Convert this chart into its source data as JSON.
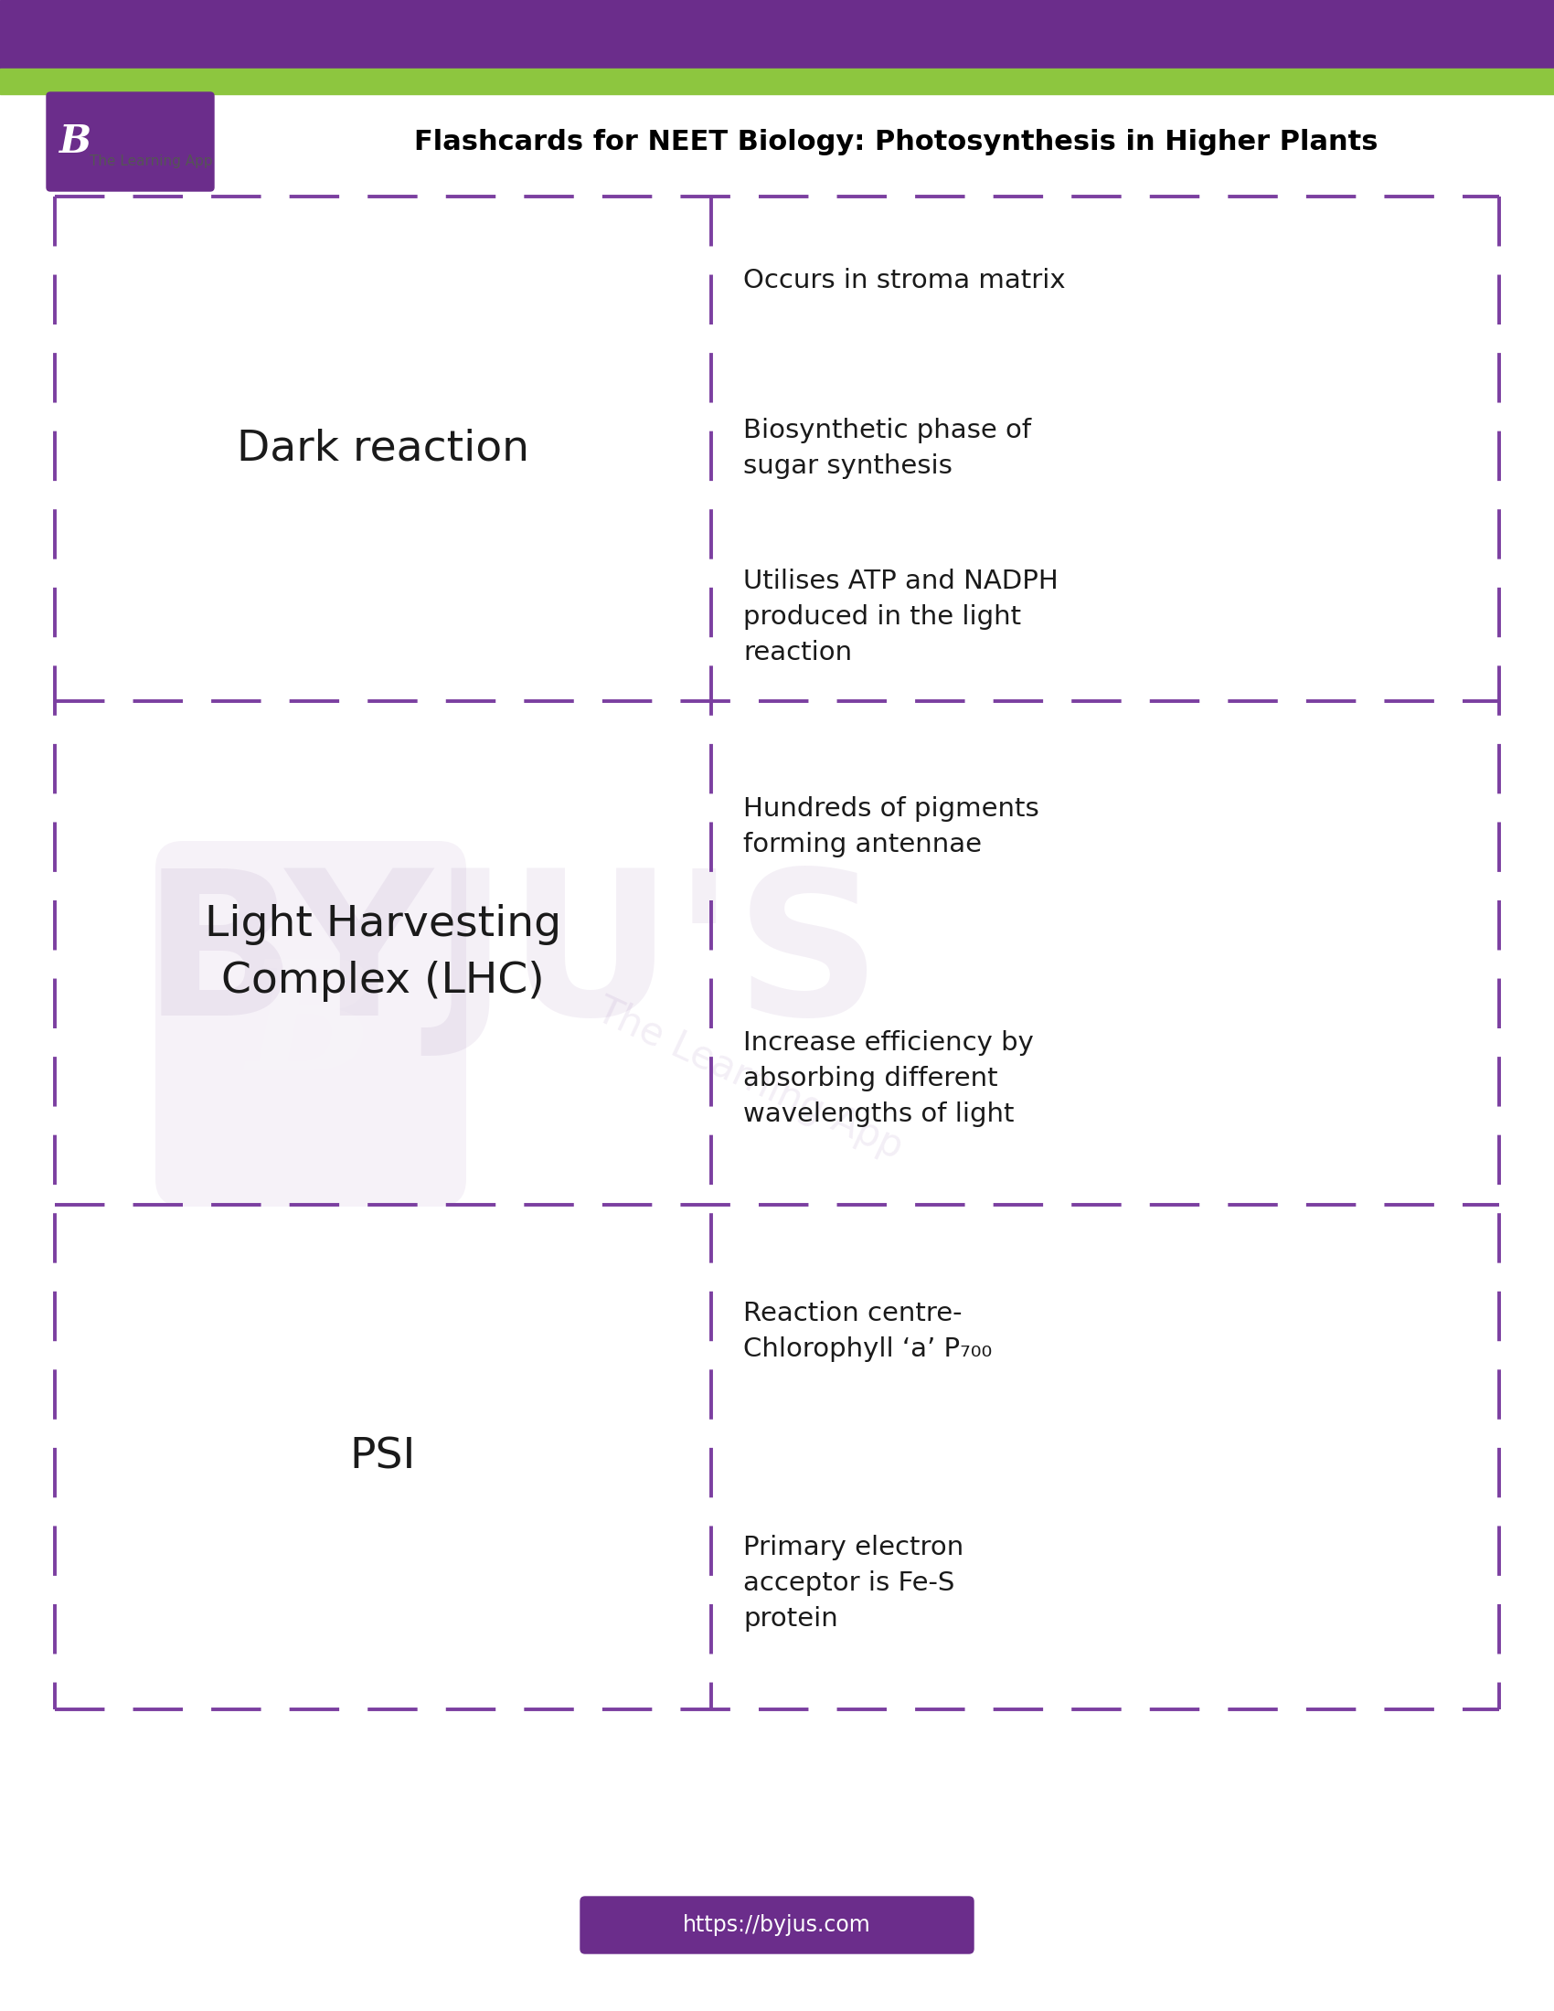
{
  "title": "Flashcards for NEET Biology: Photosynthesis in Higher Plants",
  "bg_color": "#ffffff",
  "purple_color": "#6b2d8b",
  "green_color": "#8dc63f",
  "header_purple": "#6b2d8b",
  "dash_color": "#7b3fa0",
  "text_color": "#1a1a1a",
  "url_text": "https://byjus.com",
  "url_bg": "#6b2d8b",
  "url_text_color": "#ffffff",
  "cards": [
    {
      "term": "Dark reaction",
      "facts": [
        "Occurs in stroma matrix",
        "Biosynthetic phase of\nsugar synthesis",
        "Utilises ATP and NADPH\nproduced in the light\nreaction"
      ]
    },
    {
      "term": "Light Harvesting\nComplex (LHC)",
      "facts": [
        "Hundreds of pigments\nforming antennae",
        "Increase efficiency by\nabsorbing different\nwavelengths of light"
      ]
    },
    {
      "term": "PSI",
      "facts": [
        "Reaction centre-\nChlorophyll ‘a’ P₇₀₀",
        "Primary electron\nacceptor is Fe-S\nprotein"
      ]
    }
  ]
}
